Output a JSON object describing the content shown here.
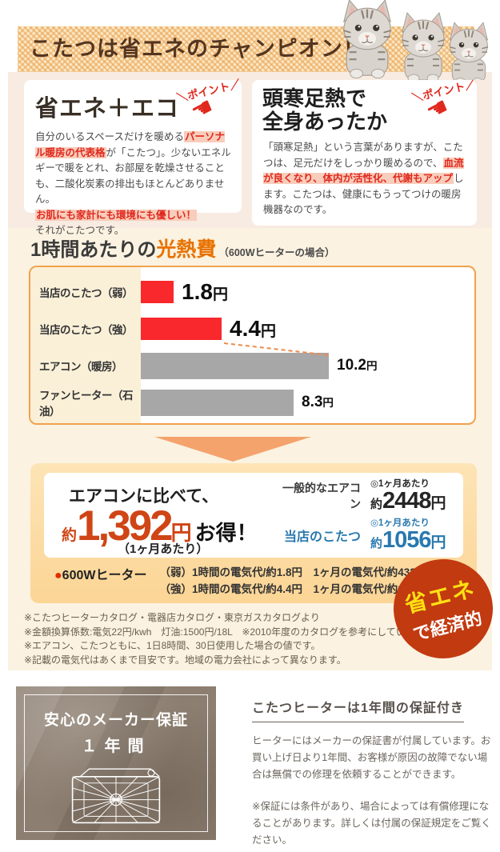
{
  "banner": {
    "title": "こたつは省エネのチャンピオン！"
  },
  "point_badge": {
    "text": "＼ポイント／",
    "hand_icon": "☚"
  },
  "features": {
    "left": {
      "title": "省エネ＋エコ",
      "p1_pre": "自分のいるスペースだけを暖める",
      "p1_highlight": "パーソナル暖房の代表格",
      "p1_post": "が「こたつ」。少ないエネルギーで暖をとれ、お部屋を乾燥させることも、二酸化炭素の排出もほとんどありません。",
      "p2_highlight": "お肌にも家計にも環境にも優しい！",
      "p3": "それがこたつです。"
    },
    "right": {
      "title_line1": "頭寒足熱で",
      "title_line2": "全身あったか",
      "p_pre": "「頭寒足熱」という言葉がありますが、こたつは、足元だけをしっかり暖めるので、",
      "p_highlight": "血流が良くなり、体内が活性化、代謝もアップ",
      "p_post": "します。こたつは、健康にもうってつけの暖房機器なのです。"
    }
  },
  "chart_section": {
    "title_pre": "1時間あたりの",
    "title_emphasis": "光熱費",
    "title_note": "（600Wヒーターの場合）"
  },
  "chart_data": {
    "type": "bar",
    "orientation": "horizontal",
    "title": "1時間あたりの光熱費（600Wヒーターの場合）",
    "unit": "円",
    "categories": [
      "当店のこたつ（弱）",
      "当店のこたつ（強）",
      "エアコン（暖房）",
      "ファンヒーター（石油）"
    ],
    "values": [
      1.8,
      4.4,
      10.2,
      8.3
    ],
    "values_display": [
      "1.8",
      "4.4",
      "10.2",
      "8.3"
    ],
    "bar_colors": [
      "#f8282d",
      "#f8282d",
      "#a7a7a7",
      "#a7a7a7"
    ],
    "xlim": [
      0,
      12
    ],
    "grid": false,
    "legend": false
  },
  "savings": {
    "headline": "エアコンに比べて、",
    "prefix": "約",
    "amount": "1,392",
    "unit": "円",
    "suffix": "お得！",
    "period": "（1ヶ月あたり）",
    "accent_color": "#cf4516",
    "rows": [
      {
        "label": "一般的なエアコン",
        "period": "◎1ヶ月あたり",
        "prefix": "約",
        "value": "2448",
        "unit": "円",
        "color": "#262626"
      },
      {
        "label": "当店のこたつ",
        "period": "◎1ヶ月あたり",
        "prefix": "約",
        "value": "1056",
        "unit": "円",
        "color": "#2979ae"
      }
    ],
    "heater_bullet": "●",
    "heater_label": "600Wヒーター",
    "heater_lines": [
      "（弱）1時間の電気代/約1.8円　1ヶ月の電気代/約432円",
      "（強）1時間の電気代/約4.4円　1ヶ月の電気代/約1056円"
    ],
    "badge": {
      "line1": "省エネ",
      "line2": "で経済的",
      "bg_color": "#c23a10",
      "line1_color": "#ffe013",
      "line2_color": "#ffffff"
    }
  },
  "notes": [
    "※こたつヒーターカタログ・電器店カタログ・東京ガスカタログより",
    "※金額換算係数:電気22円/kwh　灯油:1500円/18L　※2010年度のカタログを参考にしています。",
    "※エアコン、こたつともに、1日8時間、30日使用した場合の値です。",
    "※記載の電気代はあくまで目安です。地域の電力会社によって異なります。"
  ],
  "guarantee": {
    "panel_line1": "安心のメーカー保証",
    "panel_line2": "１年間",
    "heading": "こたつヒーターは1年間の保証付き",
    "paragraph1": "ヒーターにはメーカーの保証書が付属しています。お買い上げ日より1年間、お客様が原因の故障でない場合は無償での修理を依頼することができます。",
    "paragraph2": "※保証には条件があり、場合によっては有償修理になることがあります。詳しくは付属の保証規定をご覧ください。"
  }
}
